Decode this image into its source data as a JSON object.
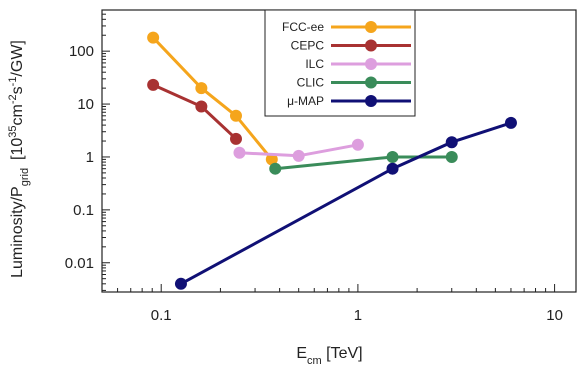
{
  "chart_data": {
    "type": "line",
    "x_scale": "log",
    "y_scale": "log",
    "xlim": [
      0.05,
      13
    ],
    "ylim": [
      0.0028,
      600
    ],
    "x_ticks": [
      {
        "value": 0.1,
        "label": "0.1"
      },
      {
        "value": 1,
        "label": "1"
      },
      {
        "value": 10,
        "label": "10"
      }
    ],
    "y_ticks": [
      {
        "value": 0.01,
        "label": "0.01"
      },
      {
        "value": 0.1,
        "label": "0.1"
      },
      {
        "value": 1,
        "label": "1"
      },
      {
        "value": 10,
        "label": "10"
      },
      {
        "value": 100,
        "label": "100"
      }
    ],
    "xlabel": {
      "main": "E",
      "sub": "cm",
      "rest": " [TeV]"
    },
    "ylabel": {
      "main": "Luminosity/P",
      "sub": "grid",
      "unit_pre": "[10",
      "unit_sup1": "35",
      "unit_mid": "cm",
      "unit_sup2": "-2",
      "unit_mid2": "s",
      "unit_sup3": "-1",
      "unit_post": "/GW]"
    },
    "grid": false,
    "legend_position": "top-right",
    "series": [
      {
        "name": "FCC-ee",
        "color": "#f5a51c",
        "x": [
          0.091,
          0.16,
          0.24,
          0.365
        ],
        "y": [
          180,
          20,
          6,
          0.9
        ]
      },
      {
        "name": "CEPC",
        "color": "#a83232",
        "x": [
          0.091,
          0.16,
          0.24
        ],
        "y": [
          23,
          9,
          2.2
        ]
      },
      {
        "name": "ILC",
        "color": "#dd9ede",
        "x": [
          0.25,
          0.5,
          1.0
        ],
        "y": [
          1.2,
          1.05,
          1.7
        ]
      },
      {
        "name": "CLIC",
        "color": "#3a8c5a",
        "x": [
          0.38,
          1.5,
          3.0
        ],
        "y": [
          0.6,
          1.0,
          1.0
        ]
      },
      {
        "name": "μ-MAP",
        "color": "#101075",
        "x": [
          0.126,
          1.5,
          3.0,
          6.0
        ],
        "y": [
          0.004,
          0.6,
          1.9,
          4.4
        ]
      }
    ]
  }
}
